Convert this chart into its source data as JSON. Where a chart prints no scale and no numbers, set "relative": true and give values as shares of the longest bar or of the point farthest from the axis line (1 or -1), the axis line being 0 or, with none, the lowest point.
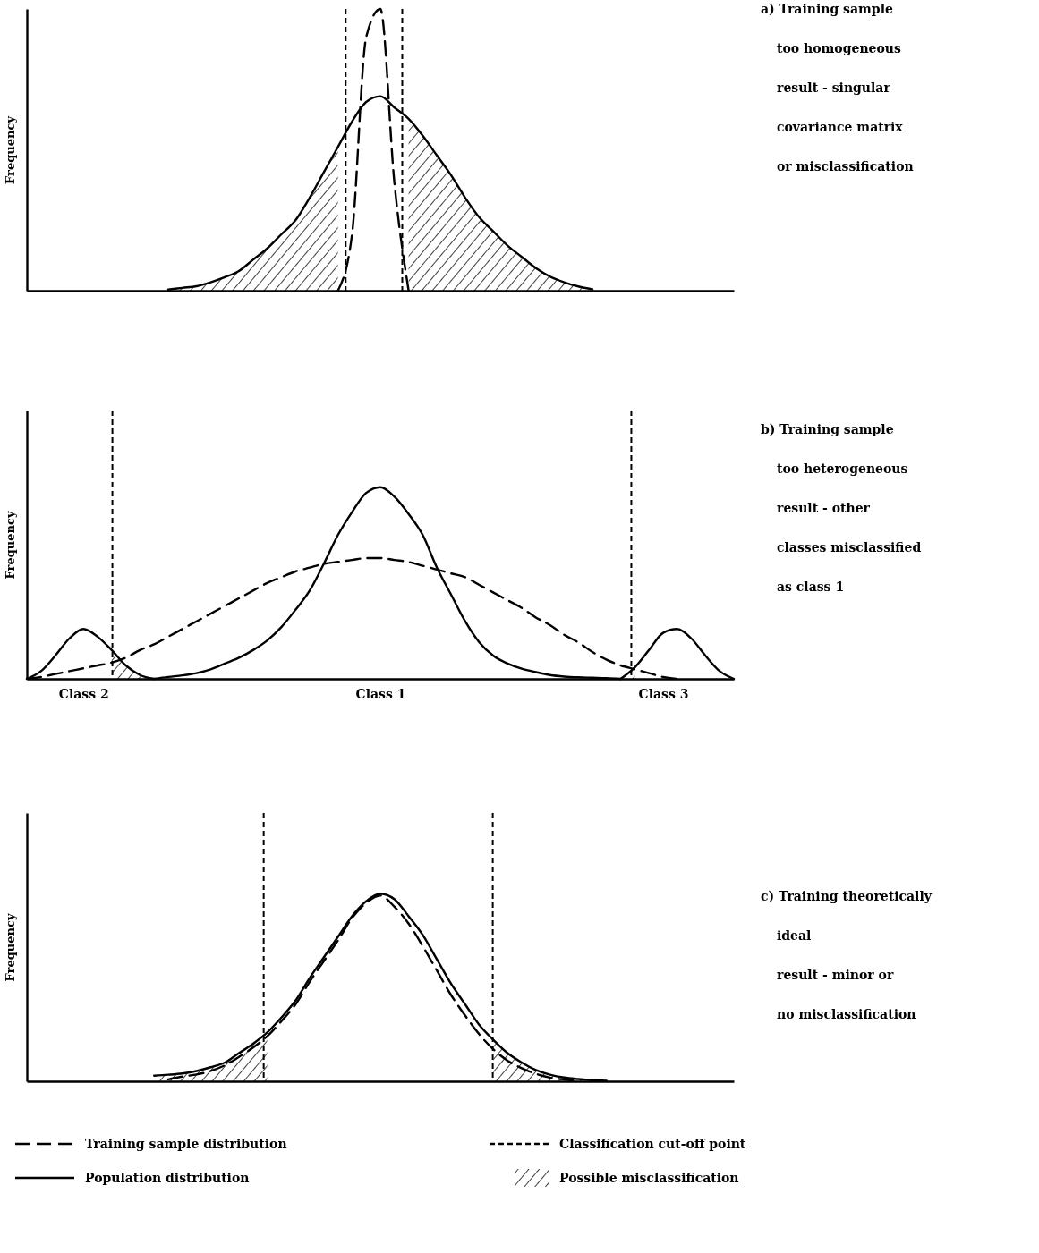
{
  "chart_data": [
    {
      "type": "line",
      "ylabel": "Frequency",
      "relative": true,
      "tick_labels": false,
      "categories": [
        null,
        null,
        null,
        null,
        null,
        null,
        null,
        null,
        null,
        null,
        null,
        null,
        null,
        null,
        null,
        null,
        null,
        null,
        null,
        null,
        null,
        null,
        null,
        null,
        null,
        null,
        null,
        null,
        null,
        null,
        null,
        null,
        null,
        null,
        null,
        null,
        null,
        null,
        null,
        null,
        null,
        null,
        null,
        null,
        null,
        null,
        null,
        null,
        null,
        null,
        null
      ],
      "annotations": [
        "a) Training sample",
        "too homogeneous",
        "result - singular",
        "covariance matrix",
        "or misclassification"
      ],
      "series": [
        {
          "type": "area",
          "color": "#000000",
          "values": [
            null,
            null,
            null,
            null,
            null,
            null,
            null,
            null,
            null,
            null,
            0.004,
            0.01,
            0.016,
            0.03,
            0.048,
            0.07,
            0.11,
            0.15,
            0.2,
            0.25,
            0.33,
            0.42,
            0.51,
            null,
            null,
            null,
            null,
            0.61,
            0.55,
            0.48,
            0.41,
            0.33,
            0.26,
            0.21,
            0.16,
            0.12,
            0.08,
            0.05,
            0.03,
            0.015,
            0.005,
            null,
            null,
            null,
            null,
            null,
            null,
            null,
            null,
            null,
            null
          ]
        },
        {
          "color": "#000000",
          "line_style": "solid",
          "values": [
            null,
            null,
            null,
            null,
            null,
            null,
            null,
            null,
            null,
            null,
            0.004,
            0.01,
            0.016,
            0.03,
            0.048,
            0.07,
            0.11,
            0.15,
            0.2,
            0.25,
            0.33,
            0.42,
            0.51,
            0.6,
            0.67,
            0.69,
            0.65,
            0.61,
            0.55,
            0.48,
            0.41,
            0.33,
            0.26,
            0.21,
            0.16,
            0.12,
            0.08,
            0.05,
            0.03,
            0.015,
            0.005,
            null,
            null,
            null,
            null,
            null,
            null,
            null,
            null,
            null,
            null
          ]
        },
        {
          "color": "#000000",
          "line_style": "dashed",
          "values": [
            null,
            null,
            null,
            null,
            null,
            null,
            null,
            null,
            null,
            null,
            null,
            null,
            null,
            null,
            null,
            null,
            null,
            null,
            null,
            null,
            null,
            null,
            0,
            0.2,
            0.9,
            1,
            0.38,
            0,
            null,
            null,
            null,
            null,
            null,
            null,
            null,
            null,
            null,
            null,
            null,
            null,
            null,
            null,
            null,
            null,
            null,
            null,
            null,
            null,
            null,
            null,
            null
          ]
        }
      ]
    },
    {
      "type": "line",
      "ylabel": "Frequency",
      "relative": true,
      "tick_labels": "x",
      "categories": [
        null,
        null,
        null,
        null,
        "Class 2",
        null,
        null,
        null,
        null,
        null,
        null,
        null,
        null,
        null,
        null,
        null,
        null,
        null,
        null,
        null,
        null,
        null,
        null,
        null,
        null,
        "Class 1",
        null,
        null,
        null,
        null,
        null,
        null,
        null,
        null,
        null,
        null,
        null,
        null,
        null,
        null,
        null,
        null,
        null,
        null,
        null,
        "Class 3",
        null,
        null,
        null,
        null,
        null
      ],
      "annotations": [
        "b) Training sample",
        "too heterogeneous",
        "result - other",
        "classes misclassified",
        "as class 1"
      ],
      "series": [
        {
          "type": "area",
          "color": "#000000",
          "values": [
            null,
            null,
            null,
            null,
            null,
            null,
            0.15,
            0.07,
            0.02,
            0,
            null,
            null,
            null,
            null,
            null,
            null,
            null,
            null,
            null,
            null,
            null,
            null,
            null,
            null,
            null,
            null,
            null,
            null,
            null,
            null,
            null,
            null,
            null,
            null,
            null,
            null,
            null,
            null,
            null,
            null,
            null,
            null,
            0,
            0.04,
            null,
            null,
            null,
            null,
            null,
            null,
            null
          ]
        },
        {
          "color": "#000000",
          "line_style": "solid",
          "values": [
            0,
            0.04,
            0.12,
            0.21,
            0.26,
            0.22,
            0.15,
            0.07,
            0.02,
            0,
            null,
            null,
            null,
            null,
            null,
            null,
            null,
            null,
            null,
            null,
            null,
            null,
            null,
            null,
            null,
            null,
            null,
            null,
            null,
            null,
            null,
            null,
            null,
            null,
            null,
            null,
            null,
            null,
            null,
            null,
            null,
            null,
            null,
            null,
            null,
            null,
            null,
            null,
            null,
            null,
            null
          ]
        },
        {
          "color": "#000000",
          "line_style": "solid",
          "values": [
            null,
            null,
            null,
            null,
            null,
            null,
            null,
            null,
            null,
            0,
            0.01,
            0.018,
            0.03,
            0.05,
            0.08,
            0.11,
            0.15,
            0.2,
            0.27,
            0.36,
            0.46,
            0.6,
            0.75,
            0.87,
            0.97,
            1,
            0.95,
            0.86,
            0.75,
            0.58,
            0.44,
            0.3,
            0.19,
            0.12,
            0.08,
            0.053,
            0.035,
            0.02,
            0.012,
            0.008,
            0.006,
            0.004,
            0,
            null,
            null,
            null,
            null,
            null,
            null,
            null,
            null
          ]
        },
        {
          "color": "#000000",
          "line_style": "solid",
          "values": [
            null,
            null,
            null,
            null,
            null,
            null,
            null,
            null,
            null,
            null,
            null,
            null,
            null,
            null,
            null,
            null,
            null,
            null,
            null,
            null,
            null,
            null,
            null,
            null,
            null,
            null,
            null,
            null,
            null,
            null,
            null,
            null,
            null,
            null,
            null,
            null,
            null,
            null,
            null,
            null,
            null,
            null,
            0,
            0.06,
            0.15,
            0.24,
            0.26,
            0.21,
            0.12,
            0.04,
            0
          ]
        },
        {
          "color": "#000000",
          "line_style": "dashed",
          "values": [
            0,
            0.01,
            0.025,
            0.04,
            0.055,
            0.07,
            0.085,
            0.11,
            0.15,
            0.18,
            0.22,
            0.26,
            0.3,
            0.34,
            0.38,
            0.42,
            0.46,
            0.5,
            0.53,
            0.56,
            0.58,
            0.6,
            0.61,
            0.62,
            0.63,
            0.63,
            0.62,
            0.61,
            0.59,
            0.57,
            0.55,
            0.53,
            0.49,
            0.45,
            0.41,
            0.37,
            0.32,
            0.28,
            0.23,
            0.19,
            0.14,
            0.1,
            0.07,
            0.05,
            0.03,
            0.01,
            0,
            null,
            null,
            null,
            null
          ]
        }
      ]
    },
    {
      "type": "line",
      "ylabel": "Frequency",
      "relative": true,
      "tick_labels": false,
      "legend": "bottom",
      "categories": [
        null,
        null,
        null,
        null,
        null,
        null,
        null,
        null,
        null,
        null,
        null,
        null,
        null,
        null,
        null,
        null,
        null,
        null,
        null,
        null,
        null,
        null,
        null,
        null,
        null,
        null,
        null,
        null,
        null,
        null,
        null,
        null,
        null,
        null,
        null,
        null,
        null,
        null,
        null,
        null,
        null,
        null,
        null,
        null,
        null,
        null,
        null,
        null,
        null,
        null,
        null
      ],
      "annotations": [
        "c) Training theoretically",
        "ideal",
        "result - minor or",
        "no misclassification",
        "Classification cut-off point"
      ],
      "series": [
        {
          "name": "Training sample distribution",
          "color": "#000000",
          "line_style": "dashed",
          "values": [
            null,
            null,
            null,
            null,
            null,
            null,
            null,
            null,
            null,
            null,
            0.01,
            0.025,
            0.036,
            0.055,
            0.085,
            0.13,
            0.18,
            0.24,
            0.32,
            0.41,
            0.53,
            0.64,
            0.75,
            0.87,
            0.95,
            0.99,
            0.93,
            0.84,
            0.72,
            0.59,
            0.46,
            0.35,
            0.25,
            0.17,
            0.11,
            0.07,
            0.04,
            0.02,
            0.009,
            0.003,
            null,
            null,
            null,
            null,
            null,
            null,
            null,
            null,
            null,
            null,
            null
          ]
        },
        {
          "name": "Population distribution",
          "color": "#000000",
          "line_style": "solid",
          "values": [
            null,
            null,
            null,
            null,
            null,
            null,
            null,
            null,
            null,
            0.03,
            0.035,
            0.042,
            0.055,
            0.075,
            0.1,
            0.15,
            0.2,
            0.26,
            0.34,
            0.43,
            0.55,
            0.66,
            0.77,
            0.88,
            0.96,
            1,
            0.97,
            0.88,
            0.78,
            0.65,
            0.52,
            0.41,
            0.3,
            0.22,
            0.15,
            0.1,
            0.06,
            0.035,
            0.02,
            0.012,
            0.006,
            0.003,
            null,
            null,
            null,
            null,
            null,
            null,
            null,
            null,
            null
          ]
        },
        {
          "type": "area",
          "name": "Possible misclassification",
          "color": "#000000",
          "values": [
            null,
            null,
            null,
            null,
            null,
            null,
            null,
            null,
            null,
            0.03,
            0.035,
            0.042,
            0.055,
            0.075,
            0.1,
            0.15,
            0.2,
            0.26,
            null,
            null,
            null,
            null,
            null,
            null,
            null,
            null,
            null,
            null,
            null,
            null,
            null,
            null,
            null,
            0.22,
            0.15,
            0.1,
            0.06,
            0.035,
            0.02,
            0.012,
            0.006,
            0.003,
            null,
            null,
            null,
            null,
            null,
            null,
            null,
            null,
            null
          ]
        }
      ]
    }
  ]
}
